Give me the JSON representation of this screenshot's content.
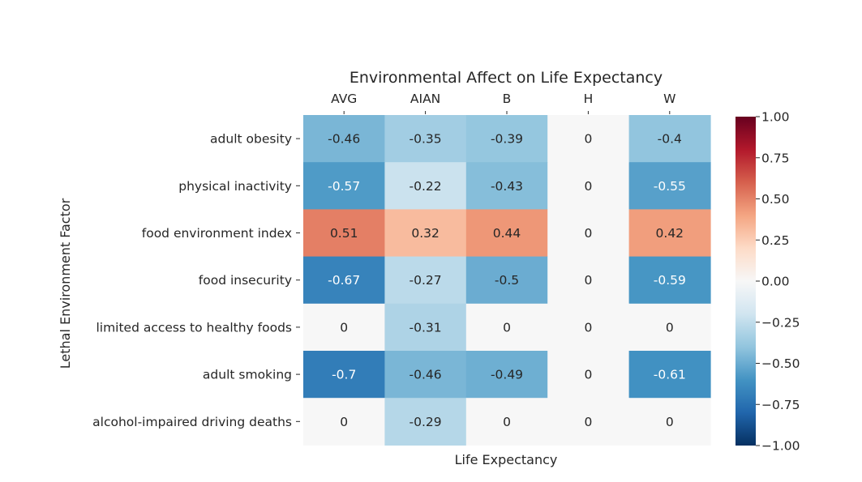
{
  "chart_data": {
    "type": "heatmap",
    "title": "Environmental Affect on Life Expectancy",
    "xlabel": "Life Expectancy",
    "ylabel": "Lethal Environment Factor",
    "columns": [
      "AVG",
      "AIAN",
      "B",
      "H",
      "W"
    ],
    "rows": [
      "adult obesity",
      "physical inactivity",
      "food environment index",
      "food insecurity",
      "limited access to healthy foods",
      "adult smoking",
      "alcohol-impaired driving deaths"
    ],
    "values": [
      [
        -0.46,
        -0.35,
        -0.39,
        0,
        -0.4
      ],
      [
        -0.57,
        -0.22,
        -0.43,
        0,
        -0.55
      ],
      [
        0.51,
        0.32,
        0.44,
        0,
        0.42
      ],
      [
        -0.67,
        -0.27,
        -0.5,
        0,
        -0.59
      ],
      [
        0,
        -0.31,
        0,
        0,
        0
      ],
      [
        -0.7,
        -0.46,
        -0.49,
        0,
        -0.61
      ],
      [
        0,
        -0.29,
        0,
        0,
        0
      ]
    ],
    "value_labels": [
      [
        "-0.46",
        "-0.35",
        "-0.39",
        "0",
        "-0.4"
      ],
      [
        "-0.57",
        "-0.22",
        "-0.43",
        "0",
        "-0.55"
      ],
      [
        "0.51",
        "0.32",
        "0.44",
        "0",
        "0.42"
      ],
      [
        "-0.67",
        "-0.27",
        "-0.5",
        "0",
        "-0.59"
      ],
      [
        "0",
        "-0.31",
        "0",
        "0",
        "0"
      ],
      [
        "-0.7",
        "-0.46",
        "-0.49",
        "0",
        "-0.61"
      ],
      [
        "0",
        "-0.29",
        "0",
        "0",
        "0"
      ]
    ],
    "colorscale": "RdBu_r",
    "vmin": -1,
    "vmax": 1,
    "colorbar_ticks": [
      1.0,
      0.75,
      0.5,
      0.25,
      0.0,
      -0.25,
      -0.5,
      -0.75,
      -1.0
    ],
    "colorbar_tick_labels": [
      "1.00",
      "0.75",
      "0.50",
      "0.25",
      "0.00",
      "−0.25",
      "−0.50",
      "−0.75",
      "−1.00"
    ],
    "x_axis_position": "top",
    "annotated": true,
    "grid": false
  }
}
